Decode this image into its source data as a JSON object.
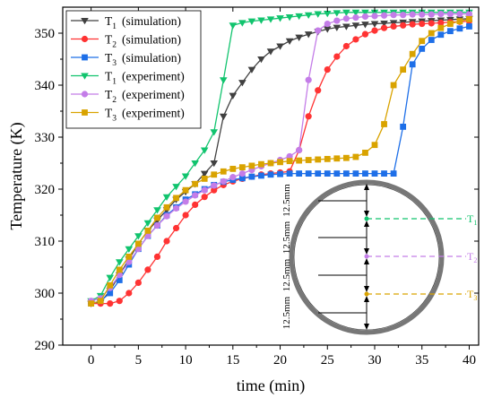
{
  "chart_data": {
    "type": "line",
    "xlabel": "time (min)",
    "ylabel": "Temperature (K)",
    "xlim": [
      -3,
      41
    ],
    "ylim": [
      290,
      355
    ],
    "xticks": [
      0,
      5,
      10,
      15,
      20,
      25,
      30,
      35,
      40
    ],
    "yticks": [
      290,
      300,
      310,
      320,
      330,
      340,
      350
    ],
    "grid": false,
    "legend_position": "top-left",
    "series": [
      {
        "name": "T1 (simulation)",
        "name_main": "T",
        "name_sub": "1",
        "name_rest": "(simulation)",
        "color": "#404040",
        "marker": "triangle-down",
        "x": [
          0,
          1,
          2,
          3,
          4,
          5,
          6,
          7,
          8,
          9,
          10,
          11,
          12,
          13,
          14,
          15,
          16,
          17,
          18,
          19,
          20,
          21,
          22,
          23,
          24,
          25,
          26,
          27,
          28,
          29,
          30,
          31,
          32,
          33,
          34,
          35,
          36,
          37,
          38,
          39,
          40
        ],
        "y": [
          298.0,
          298.2,
          300.5,
          303.5,
          306.5,
          309.5,
          312.0,
          314.0,
          316.0,
          318.0,
          319.5,
          321.0,
          323.0,
          325.0,
          334.0,
          338.0,
          340.5,
          343.0,
          345.0,
          346.5,
          347.5,
          348.5,
          349.2,
          349.8,
          350.3,
          350.8,
          351.1,
          351.3,
          351.5,
          351.7,
          351.8,
          351.9,
          352.0,
          352.1,
          352.2,
          352.3,
          352.4,
          352.5,
          352.6,
          352.7,
          352.8
        ]
      },
      {
        "name": "T2 (simulation)",
        "name_main": "T",
        "name_sub": "2",
        "name_rest": "(simulation)",
        "color": "#ff3333",
        "marker": "circle",
        "x": [
          0,
          1,
          2,
          3,
          4,
          5,
          6,
          7,
          8,
          9,
          10,
          11,
          12,
          13,
          14,
          15,
          16,
          17,
          18,
          19,
          20,
          21,
          22,
          23,
          24,
          25,
          26,
          27,
          28,
          29,
          30,
          31,
          32,
          33,
          34,
          35,
          36,
          37,
          38,
          39,
          40
        ],
        "y": [
          298.0,
          298.0,
          298.0,
          298.5,
          300.0,
          302.0,
          304.5,
          307.0,
          310.0,
          312.5,
          315.0,
          317.0,
          318.5,
          319.8,
          320.8,
          321.5,
          322.0,
          322.4,
          322.8,
          323.0,
          323.2,
          323.4,
          327.5,
          334.0,
          339.0,
          343.0,
          345.5,
          347.5,
          348.8,
          349.8,
          350.5,
          351.0,
          351.3,
          351.5,
          351.7,
          351.8,
          351.9,
          352.0,
          352.1,
          352.2,
          352.3
        ]
      },
      {
        "name": "T3 (simulation)",
        "name_main": "T",
        "name_sub": "3",
        "name_rest": "(simulation)",
        "color": "#1e6fe8",
        "marker": "square",
        "x": [
          0,
          1,
          2,
          3,
          4,
          5,
          6,
          7,
          8,
          9,
          10,
          11,
          12,
          13,
          14,
          15,
          16,
          17,
          18,
          19,
          20,
          21,
          22,
          23,
          24,
          25,
          26,
          27,
          28,
          29,
          30,
          31,
          32,
          33,
          34,
          35,
          36,
          37,
          38,
          39,
          40
        ],
        "y": [
          298.0,
          298.5,
          300.0,
          302.5,
          305.5,
          308.5,
          311.0,
          313.0,
          315.0,
          316.5,
          318.0,
          319.0,
          320.0,
          320.8,
          321.4,
          321.8,
          322.1,
          322.4,
          322.6,
          322.8,
          322.9,
          323.0,
          323.0,
          323.0,
          323.0,
          323.0,
          323.0,
          323.0,
          323.0,
          323.0,
          323.0,
          323.0,
          323.0,
          332.0,
          344.0,
          347.0,
          348.7,
          349.7,
          350.4,
          350.9,
          351.3
        ]
      },
      {
        "name": "T1 (experiment)",
        "name_main": "T",
        "name_sub": "1",
        "name_rest": "(experiment)",
        "color": "#11c46e",
        "marker": "triangle-down",
        "x": [
          0,
          1,
          2,
          3,
          4,
          5,
          6,
          7,
          8,
          9,
          10,
          11,
          12,
          13,
          14,
          15,
          16,
          17,
          18,
          19,
          20,
          21,
          22,
          23,
          24,
          25,
          26,
          27,
          28,
          29,
          30,
          31,
          32,
          33,
          34,
          35,
          36,
          37,
          38,
          39,
          40
        ],
        "y": [
          298.5,
          299.5,
          303.0,
          306.0,
          308.5,
          311.0,
          313.5,
          316.0,
          318.5,
          320.5,
          322.5,
          325.0,
          327.5,
          331.0,
          341.0,
          351.5,
          352.0,
          352.3,
          352.5,
          352.7,
          352.9,
          353.1,
          353.3,
          353.5,
          353.7,
          353.8,
          353.9,
          354.0,
          354.0,
          354.0,
          354.0,
          354.0,
          354.0,
          354.0,
          354.0,
          354.0,
          354.0,
          354.0,
          354.0,
          354.0,
          354.0
        ]
      },
      {
        "name": "T2 (experiment)",
        "name_main": "T",
        "name_sub": "2",
        "name_rest": "(experiment)",
        "color": "#c47de8",
        "marker": "circle",
        "x": [
          0,
          1,
          2,
          3,
          4,
          5,
          6,
          7,
          8,
          9,
          10,
          11,
          12,
          13,
          14,
          15,
          16,
          17,
          18,
          19,
          20,
          21,
          22,
          23,
          24,
          25,
          26,
          27,
          28,
          29,
          30,
          31,
          32,
          33,
          34,
          35,
          36,
          37,
          38,
          39,
          40
        ],
        "y": [
          298.5,
          299.0,
          301.0,
          303.5,
          306.0,
          308.5,
          311.0,
          313.0,
          314.8,
          316.3,
          317.6,
          318.8,
          319.8,
          320.7,
          321.5,
          322.3,
          323.0,
          323.7,
          324.4,
          325.0,
          325.6,
          326.3,
          327.5,
          341.0,
          350.5,
          351.8,
          352.4,
          352.8,
          353.0,
          353.2,
          353.3,
          353.4,
          353.5,
          353.5,
          353.6,
          353.6,
          353.6,
          353.7,
          353.7,
          353.7,
          353.7
        ]
      },
      {
        "name": "T3 (experiment)",
        "name_main": "T",
        "name_sub": "3",
        "name_rest": "(experiment)",
        "color": "#d9a300",
        "marker": "square",
        "x": [
          0,
          1,
          2,
          3,
          4,
          5,
          6,
          7,
          8,
          9,
          10,
          11,
          12,
          13,
          14,
          15,
          16,
          17,
          18,
          19,
          20,
          21,
          22,
          23,
          24,
          25,
          26,
          27,
          28,
          29,
          30,
          31,
          32,
          33,
          34,
          35,
          36,
          37,
          38,
          39,
          40
        ],
        "y": [
          298.0,
          298.5,
          301.5,
          304.5,
          307.0,
          309.5,
          312.0,
          314.5,
          316.5,
          318.3,
          319.8,
          321.0,
          322.0,
          322.8,
          323.4,
          323.9,
          324.2,
          324.5,
          324.8,
          325.0,
          325.2,
          325.4,
          325.5,
          325.6,
          325.7,
          325.8,
          325.9,
          326.0,
          326.2,
          327.0,
          328.5,
          332.5,
          340.0,
          343.0,
          346.0,
          348.5,
          350.0,
          351.0,
          351.8,
          352.3,
          352.7
        ]
      }
    ],
    "inset": {
      "dimension_labels": [
        "12.5mm",
        "12.5mm",
        "12.5mm",
        "12.5mm"
      ],
      "sensor_labels": [
        {
          "main": "T",
          "sub": "1",
          "color": "#11c46e"
        },
        {
          "main": "T",
          "sub": "2",
          "color": "#c47de8"
        },
        {
          "main": "T",
          "sub": "3",
          "color": "#d9a300"
        }
      ]
    }
  }
}
